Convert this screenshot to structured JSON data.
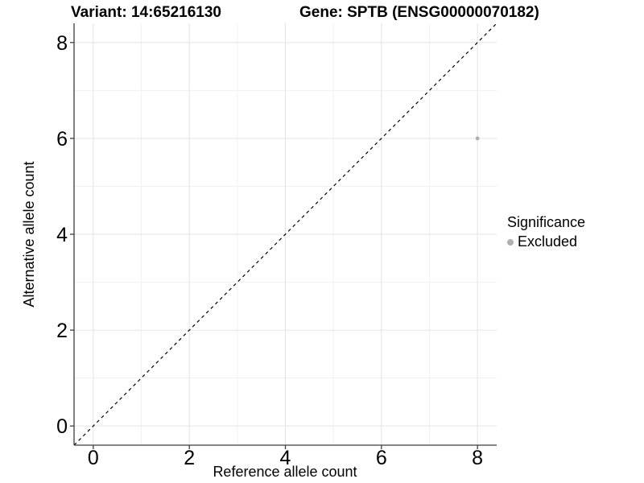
{
  "titles": {
    "variant": "Variant: 14:65216130",
    "gene": "Gene: SPTB (ENSG00000070182)"
  },
  "legend": {
    "title": "Significance",
    "items": [
      {
        "label": "Excluded",
        "color": "#b0b0b0"
      }
    ]
  },
  "chart_data": {
    "type": "scatter",
    "title_left": "Variant: 14:65216130",
    "title_right": "Gene: SPTB (ENSG00000070182)",
    "xlabel": "Reference allele count",
    "ylabel": "Alternative allele count",
    "xlim": [
      -0.4,
      8.4
    ],
    "ylim": [
      -0.4,
      8.4
    ],
    "xticks": [
      0,
      2,
      4,
      6,
      8
    ],
    "yticks": [
      0,
      2,
      4,
      6,
      8
    ],
    "minor_xticks": [
      1,
      3,
      5,
      7
    ],
    "minor_yticks": [
      1,
      3,
      5,
      7
    ],
    "grid": "major+minor",
    "legend_position": "right",
    "series": [
      {
        "name": "Excluded",
        "color": "#b0b0b0",
        "points": [
          {
            "x": 8,
            "y": 6
          }
        ]
      }
    ],
    "reference_line": {
      "type": "identity y=x",
      "style": "dashed",
      "color": "#000000"
    }
  },
  "colors": {
    "background": "#ffffff",
    "axis_line": "#3d3d3d",
    "tick_label": "#000000",
    "grid_major": "#e4e4e4",
    "grid_minor": "#f1f1f1",
    "point": "#b0b0b0"
  }
}
